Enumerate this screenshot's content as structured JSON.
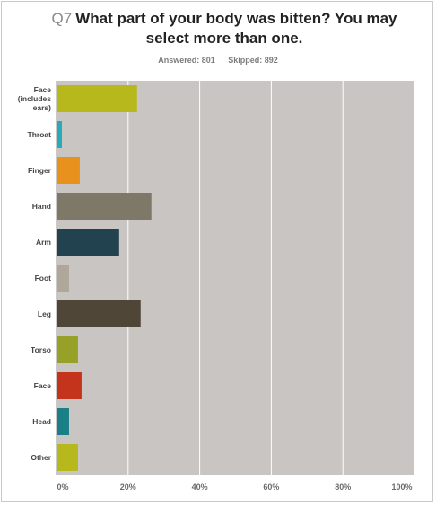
{
  "header": {
    "question_number": "Q7",
    "question_text": "What part of your body was bitten? You may select more than one.",
    "answered": "Answered: 801",
    "skipped": "Skipped: 892"
  },
  "chart_data": {
    "type": "bar",
    "orientation": "horizontal",
    "title": "What part of your body was bitten? You may select more than one.",
    "categories": [
      "Face (includes ears)",
      "Throat",
      "Finger",
      "Hand",
      "Arm",
      "Foot",
      "Leg",
      "Torso",
      "Face",
      "Head",
      "Other"
    ],
    "category_lines": [
      [
        "Face",
        "(includes",
        "ears)"
      ],
      [
        "Throat"
      ],
      [
        "Finger"
      ],
      [
        "Hand"
      ],
      [
        "Arm"
      ],
      [
        "Foot"
      ],
      [
        "Leg"
      ],
      [
        "Torso"
      ],
      [
        "Face"
      ],
      [
        "Head"
      ],
      [
        "Other"
      ]
    ],
    "values": [
      22.5,
      1.5,
      6.5,
      26.5,
      17.5,
      3.5,
      23.5,
      6.0,
      7.0,
      3.5,
      6.0
    ],
    "bar_colors": [
      "#b6b81b",
      "#2aa9b7",
      "#e8911d",
      "#7d7867",
      "#23424f",
      "#aea79a",
      "#4f4638",
      "#97a128",
      "#c4331b",
      "#1b7f87",
      "#b6b81b"
    ],
    "xlim": [
      0,
      100
    ],
    "ticks": [
      "0%",
      "20%",
      "40%",
      "60%",
      "80%",
      "100%"
    ],
    "grid": true,
    "plot_background": "#c9c5c2"
  }
}
